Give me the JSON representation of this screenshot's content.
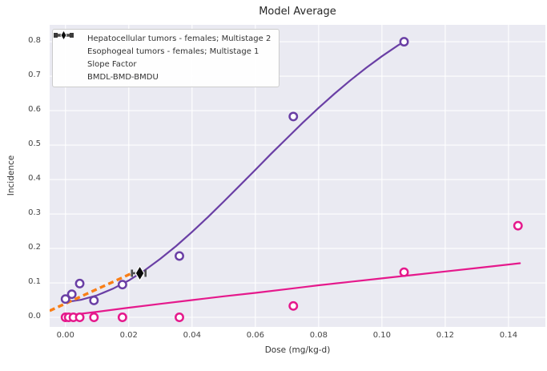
{
  "figure": {
    "title": "Model Average"
  },
  "chart_data": {
    "type": "scatter+line",
    "title": "Model Average",
    "xlabel": "Dose (mg/kg-d)",
    "ylabel": "Incidence",
    "xlim": [
      -0.005,
      0.15166
    ],
    "ylim": [
      -0.0279,
      0.8491
    ],
    "grid": true,
    "legend_position": "upper left",
    "x_ticks": {
      "values": [
        0.0,
        0.02,
        0.04,
        0.06,
        0.08,
        0.1,
        0.12,
        0.14
      ],
      "labels": [
        "0.00",
        "0.02",
        "0.04",
        "0.06",
        "0.08",
        "0.10",
        "0.12",
        "0.14"
      ]
    },
    "y_ticks": {
      "values": [
        0.0,
        0.1,
        0.2,
        0.3,
        0.4,
        0.5,
        0.6,
        0.7,
        0.8
      ],
      "labels": [
        "0.0",
        "0.1",
        "0.2",
        "0.3",
        "0.4",
        "0.5",
        "0.6",
        "0.7",
        "0.8"
      ]
    },
    "colors": {
      "plot_bg": "#EAEAF2",
      "grid": "#FFFFFF",
      "hepatocellular": "#6A3FA5",
      "esophogeal": "#E5198C",
      "slope_factor": "#F97E16",
      "bmd_marker": "#0B0B0B",
      "bmd_caps": "#4D4D4D",
      "marker_fill": "#FFFFFF"
    },
    "series": [
      {
        "name": "Hepatocellular tumors - females; Multistage 2",
        "type": "scatter+curve",
        "marker": "open-circle",
        "color_key": "hepatocellular",
        "points": [
          [
            0.0,
            0.053
          ],
          [
            0.002,
            0.067
          ],
          [
            0.0045,
            0.098
          ],
          [
            0.009,
            0.049
          ],
          [
            0.018,
            0.095
          ],
          [
            0.036,
            0.178
          ],
          [
            0.072,
            0.583
          ],
          [
            0.107,
            0.8
          ]
        ],
        "curve": [
          [
            0,
            0.044
          ],
          [
            0.005,
            0.051
          ],
          [
            0.01,
            0.064
          ],
          [
            0.015,
            0.083
          ],
          [
            0.02,
            0.107
          ],
          [
            0.025,
            0.136
          ],
          [
            0.03,
            0.17
          ],
          [
            0.035,
            0.207
          ],
          [
            0.04,
            0.248
          ],
          [
            0.045,
            0.291
          ],
          [
            0.05,
            0.336
          ],
          [
            0.055,
            0.382
          ],
          [
            0.06,
            0.428
          ],
          [
            0.065,
            0.475
          ],
          [
            0.07,
            0.52
          ],
          [
            0.075,
            0.565
          ],
          [
            0.08,
            0.608
          ],
          [
            0.085,
            0.649
          ],
          [
            0.09,
            0.688
          ],
          [
            0.095,
            0.724
          ],
          [
            0.1,
            0.758
          ],
          [
            0.105,
            0.789
          ],
          [
            0.107,
            0.8
          ]
        ]
      },
      {
        "name": "Esophogeal tumors - females; Multistage 1",
        "type": "scatter+curve",
        "marker": "open-circle",
        "color_key": "esophogeal",
        "points": [
          [
            0.0,
            0.0
          ],
          [
            0.001,
            0.0
          ],
          [
            0.0025,
            0.0
          ],
          [
            0.0045,
            0.0
          ],
          [
            0.009,
            0.0
          ],
          [
            0.018,
            0.0
          ],
          [
            0.036,
            0.0
          ],
          [
            0.072,
            0.033
          ],
          [
            0.107,
            0.131
          ],
          [
            0.143,
            0.266
          ]
        ],
        "curve": [
          [
            0,
            0.005
          ],
          [
            0.01,
            0.016
          ],
          [
            0.02,
            0.028
          ],
          [
            0.03,
            0.039
          ],
          [
            0.04,
            0.05
          ],
          [
            0.05,
            0.061
          ],
          [
            0.06,
            0.071
          ],
          [
            0.07,
            0.082
          ],
          [
            0.08,
            0.093
          ],
          [
            0.09,
            0.103
          ],
          [
            0.1,
            0.113
          ],
          [
            0.11,
            0.123
          ],
          [
            0.12,
            0.133
          ],
          [
            0.13,
            0.143
          ],
          [
            0.1436,
            0.157
          ]
        ]
      },
      {
        "name": "Slope Factor",
        "type": "dashed-line",
        "color_key": "slope_factor",
        "line": [
          [
            -0.005,
            0.019
          ],
          [
            0.021,
            0.128
          ]
        ]
      },
      {
        "name": "BMDL-BMD-BMDU",
        "type": "error-bar-diamond",
        "bmdl": 0.021,
        "bmd": 0.0235,
        "bmdu": 0.0253,
        "response": 0.128
      }
    ]
  }
}
